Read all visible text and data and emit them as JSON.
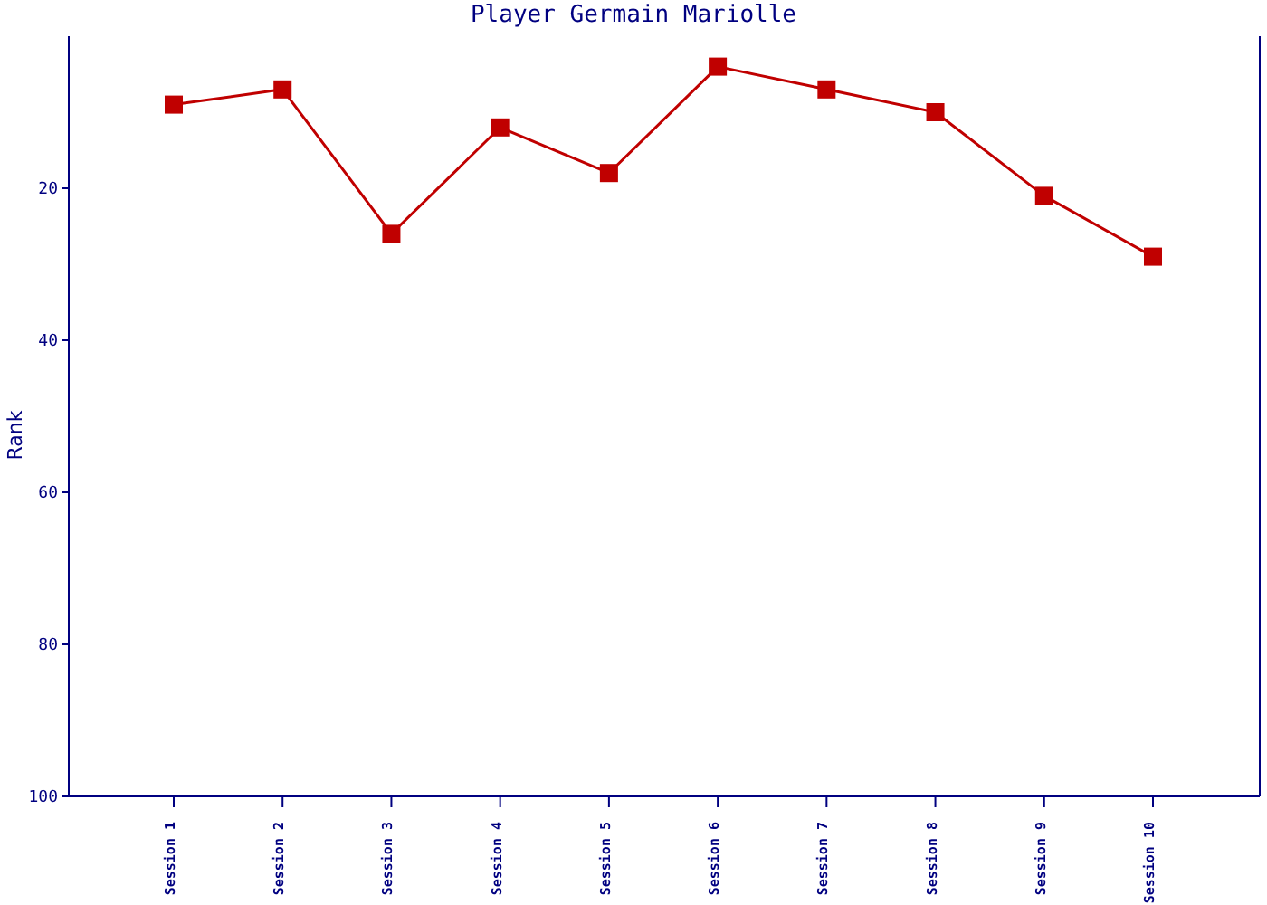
{
  "chart_data": {
    "type": "line",
    "title": "Player Germain Mariolle",
    "ylabel": "Rank",
    "categories": [
      "Session 1",
      "Session 2",
      "Session 3",
      "Session 4",
      "Session 5",
      "Session 6",
      "Session 7",
      "Session 8",
      "Session 9",
      "Session 10"
    ],
    "series": [
      {
        "color": "#c00000",
        "values": [
          9,
          7,
          26,
          12,
          18,
          4,
          7,
          10,
          21,
          29
        ]
      }
    ],
    "ylim": [
      100,
      0
    ],
    "yticks": [
      20,
      40,
      60,
      80,
      100
    ],
    "grid": false,
    "legend": false,
    "marker": "square",
    "line_style": "solid"
  }
}
